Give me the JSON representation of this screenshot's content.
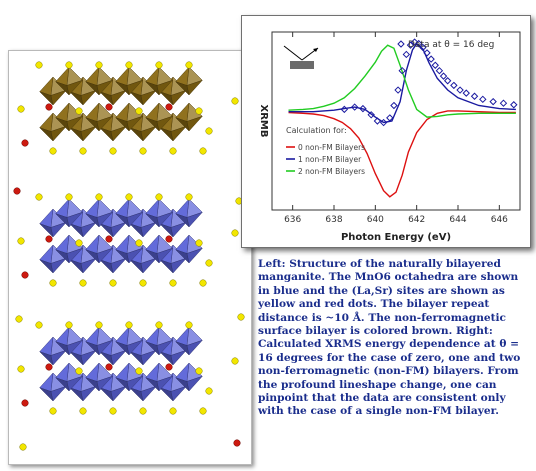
{
  "caption": "Left: Structure of the naturally bilayered manganite. The MnO6 octahedra are shown in blue and the (La,Sr) sites are shown as yellow and red dots. The bilayer repeat distance is ~10 Å. The non-ferromagnetic surface bilayer is colored brown. Right: Calculated XRMS energy dependence at θ = 16 degrees for the case of zero, one and two non-ferromagnetic (non-FM) bilayers. From the profound lineshape change, one can pinpoint that the data are consistent only with the case of a single non-FM bilayer.",
  "structure": {
    "colors": {
      "surface_bilayer": "#8a6a12",
      "bulk_bilayer": "#5b63d8",
      "la_site": "#f2e600",
      "sr_site": "#cc1a10"
    }
  },
  "chart_data": {
    "type": "line",
    "xlabel": "Photon Energy (eV)",
    "ylabel": "XRMB",
    "xlim": [
      635,
      647
    ],
    "xticks": [
      636,
      638,
      640,
      642,
      644,
      646
    ],
    "ylim": [
      -1.25,
      1.05
    ],
    "grid": false,
    "data_label": "Data at θ = 16 deg",
    "calc_title": "Calculation for:",
    "series": [
      {
        "name": "0 non-FM Bilayers",
        "color": "#dd1010",
        "x": [
          635.8,
          636.5,
          637.0,
          637.5,
          638.0,
          638.4,
          638.8,
          639.2,
          639.6,
          640.0,
          640.4,
          640.7,
          641.0,
          641.3,
          641.6,
          642.0,
          642.5,
          643.0,
          643.5,
          644.0,
          645.0,
          646.0,
          646.8
        ],
        "y": [
          0.01,
          0.0,
          -0.01,
          -0.03,
          -0.07,
          -0.12,
          -0.2,
          -0.32,
          -0.52,
          -0.78,
          -1.0,
          -1.08,
          -1.02,
          -0.8,
          -0.5,
          -0.25,
          -0.08,
          0.0,
          0.03,
          0.03,
          0.02,
          0.01,
          0.01
        ]
      },
      {
        "name": "1 non-FM Bilayer",
        "color": "#1a1aa0",
        "x": [
          635.8,
          636.5,
          637.0,
          637.5,
          638.0,
          638.5,
          639.0,
          639.5,
          640.0,
          640.4,
          640.8,
          641.2,
          641.5,
          641.8,
          642.0,
          642.3,
          642.6,
          643.0,
          643.5,
          644.0,
          645.0,
          646.0,
          646.8
        ],
        "y": [
          0.02,
          0.02,
          0.02,
          0.03,
          0.04,
          0.06,
          0.08,
          0.05,
          -0.05,
          -0.12,
          -0.1,
          0.15,
          0.55,
          0.82,
          0.9,
          0.83,
          0.65,
          0.45,
          0.3,
          0.2,
          0.1,
          0.06,
          0.05
        ]
      },
      {
        "name": "2 non-FM Bilayers",
        "color": "#22cc22",
        "x": [
          635.8,
          636.5,
          637.0,
          637.5,
          638.0,
          638.5,
          639.0,
          639.5,
          640.0,
          640.3,
          640.6,
          640.9,
          641.2,
          641.6,
          642.0,
          642.5,
          643.0,
          643.5,
          644.0,
          645.0,
          646.0,
          646.8
        ],
        "y": [
          0.04,
          0.05,
          0.06,
          0.09,
          0.13,
          0.2,
          0.32,
          0.48,
          0.66,
          0.8,
          0.88,
          0.84,
          0.62,
          0.3,
          0.05,
          -0.05,
          -0.04,
          -0.02,
          -0.01,
          0.0,
          0.0,
          0.0
        ]
      }
    ],
    "data_points": {
      "marker": "diamond",
      "color": "#1a1aa0",
      "x": [
        638.5,
        639.0,
        639.4,
        639.8,
        640.1,
        640.4,
        640.7,
        640.9,
        641.1,
        641.3,
        641.5,
        641.7,
        641.9,
        642.1,
        642.3,
        642.5,
        642.7,
        642.9,
        643.1,
        643.3,
        643.5,
        643.8,
        644.1,
        644.4,
        644.8,
        645.2,
        645.7,
        646.2,
        646.7
      ],
      "y": [
        0.05,
        0.08,
        0.06,
        -0.02,
        -0.1,
        -0.12,
        -0.06,
        0.1,
        0.3,
        0.55,
        0.76,
        0.88,
        0.92,
        0.9,
        0.85,
        0.78,
        0.7,
        0.62,
        0.55,
        0.48,
        0.42,
        0.36,
        0.3,
        0.26,
        0.22,
        0.18,
        0.15,
        0.13,
        0.11
      ]
    }
  }
}
